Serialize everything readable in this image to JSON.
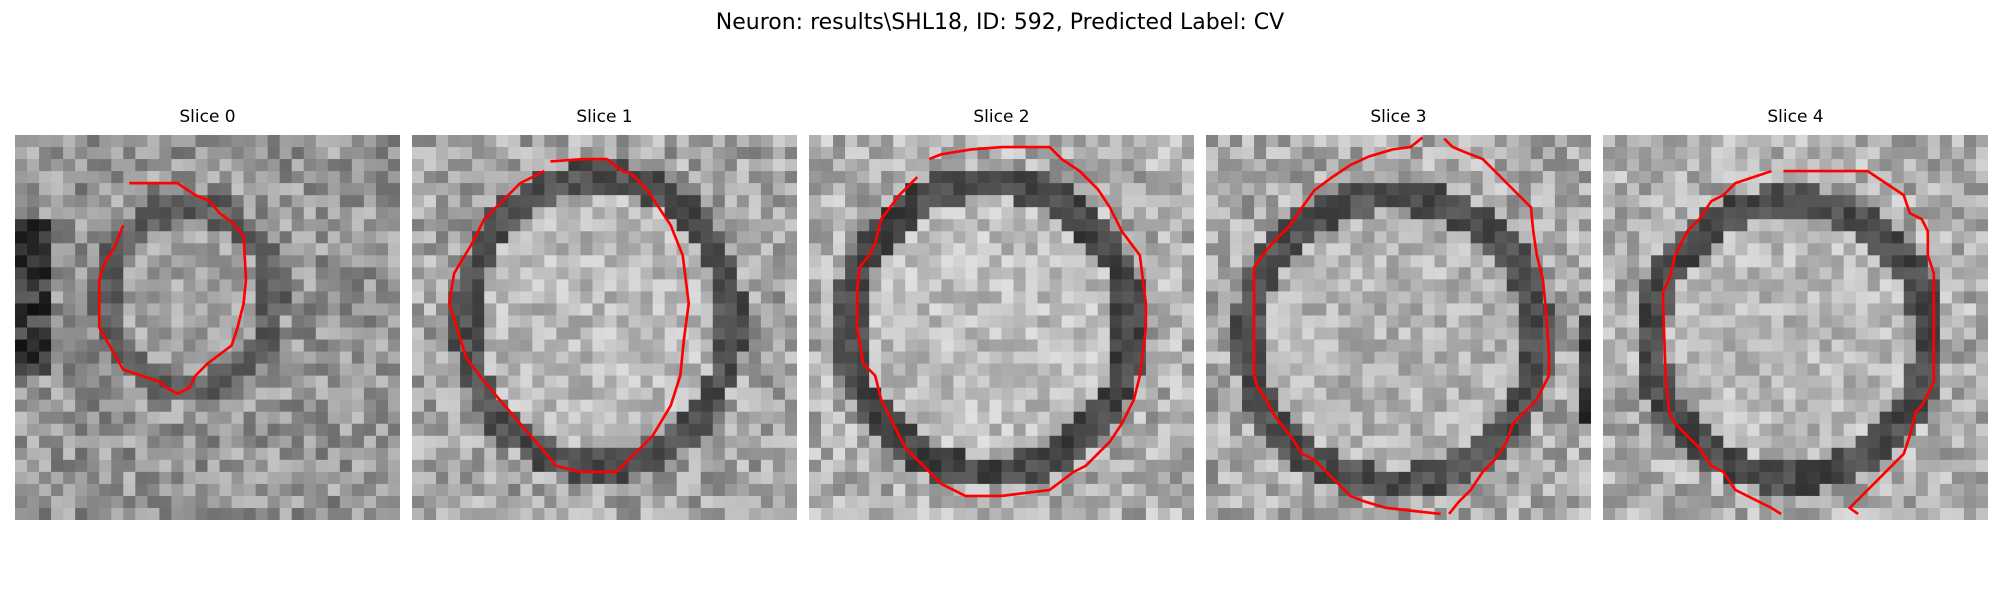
{
  "figure": {
    "title": "Neuron: results\\SHL18, ID: 592, Predicted Label: CV"
  },
  "panels": [
    {
      "title": "Slice 0"
    },
    {
      "title": "Slice 1"
    },
    {
      "title": "Slice 2"
    },
    {
      "title": "Slice 3"
    },
    {
      "title": "Slice 4"
    }
  ],
  "colors": {
    "contour": "#ff0000",
    "colormap": "grayscale"
  },
  "icons": []
}
